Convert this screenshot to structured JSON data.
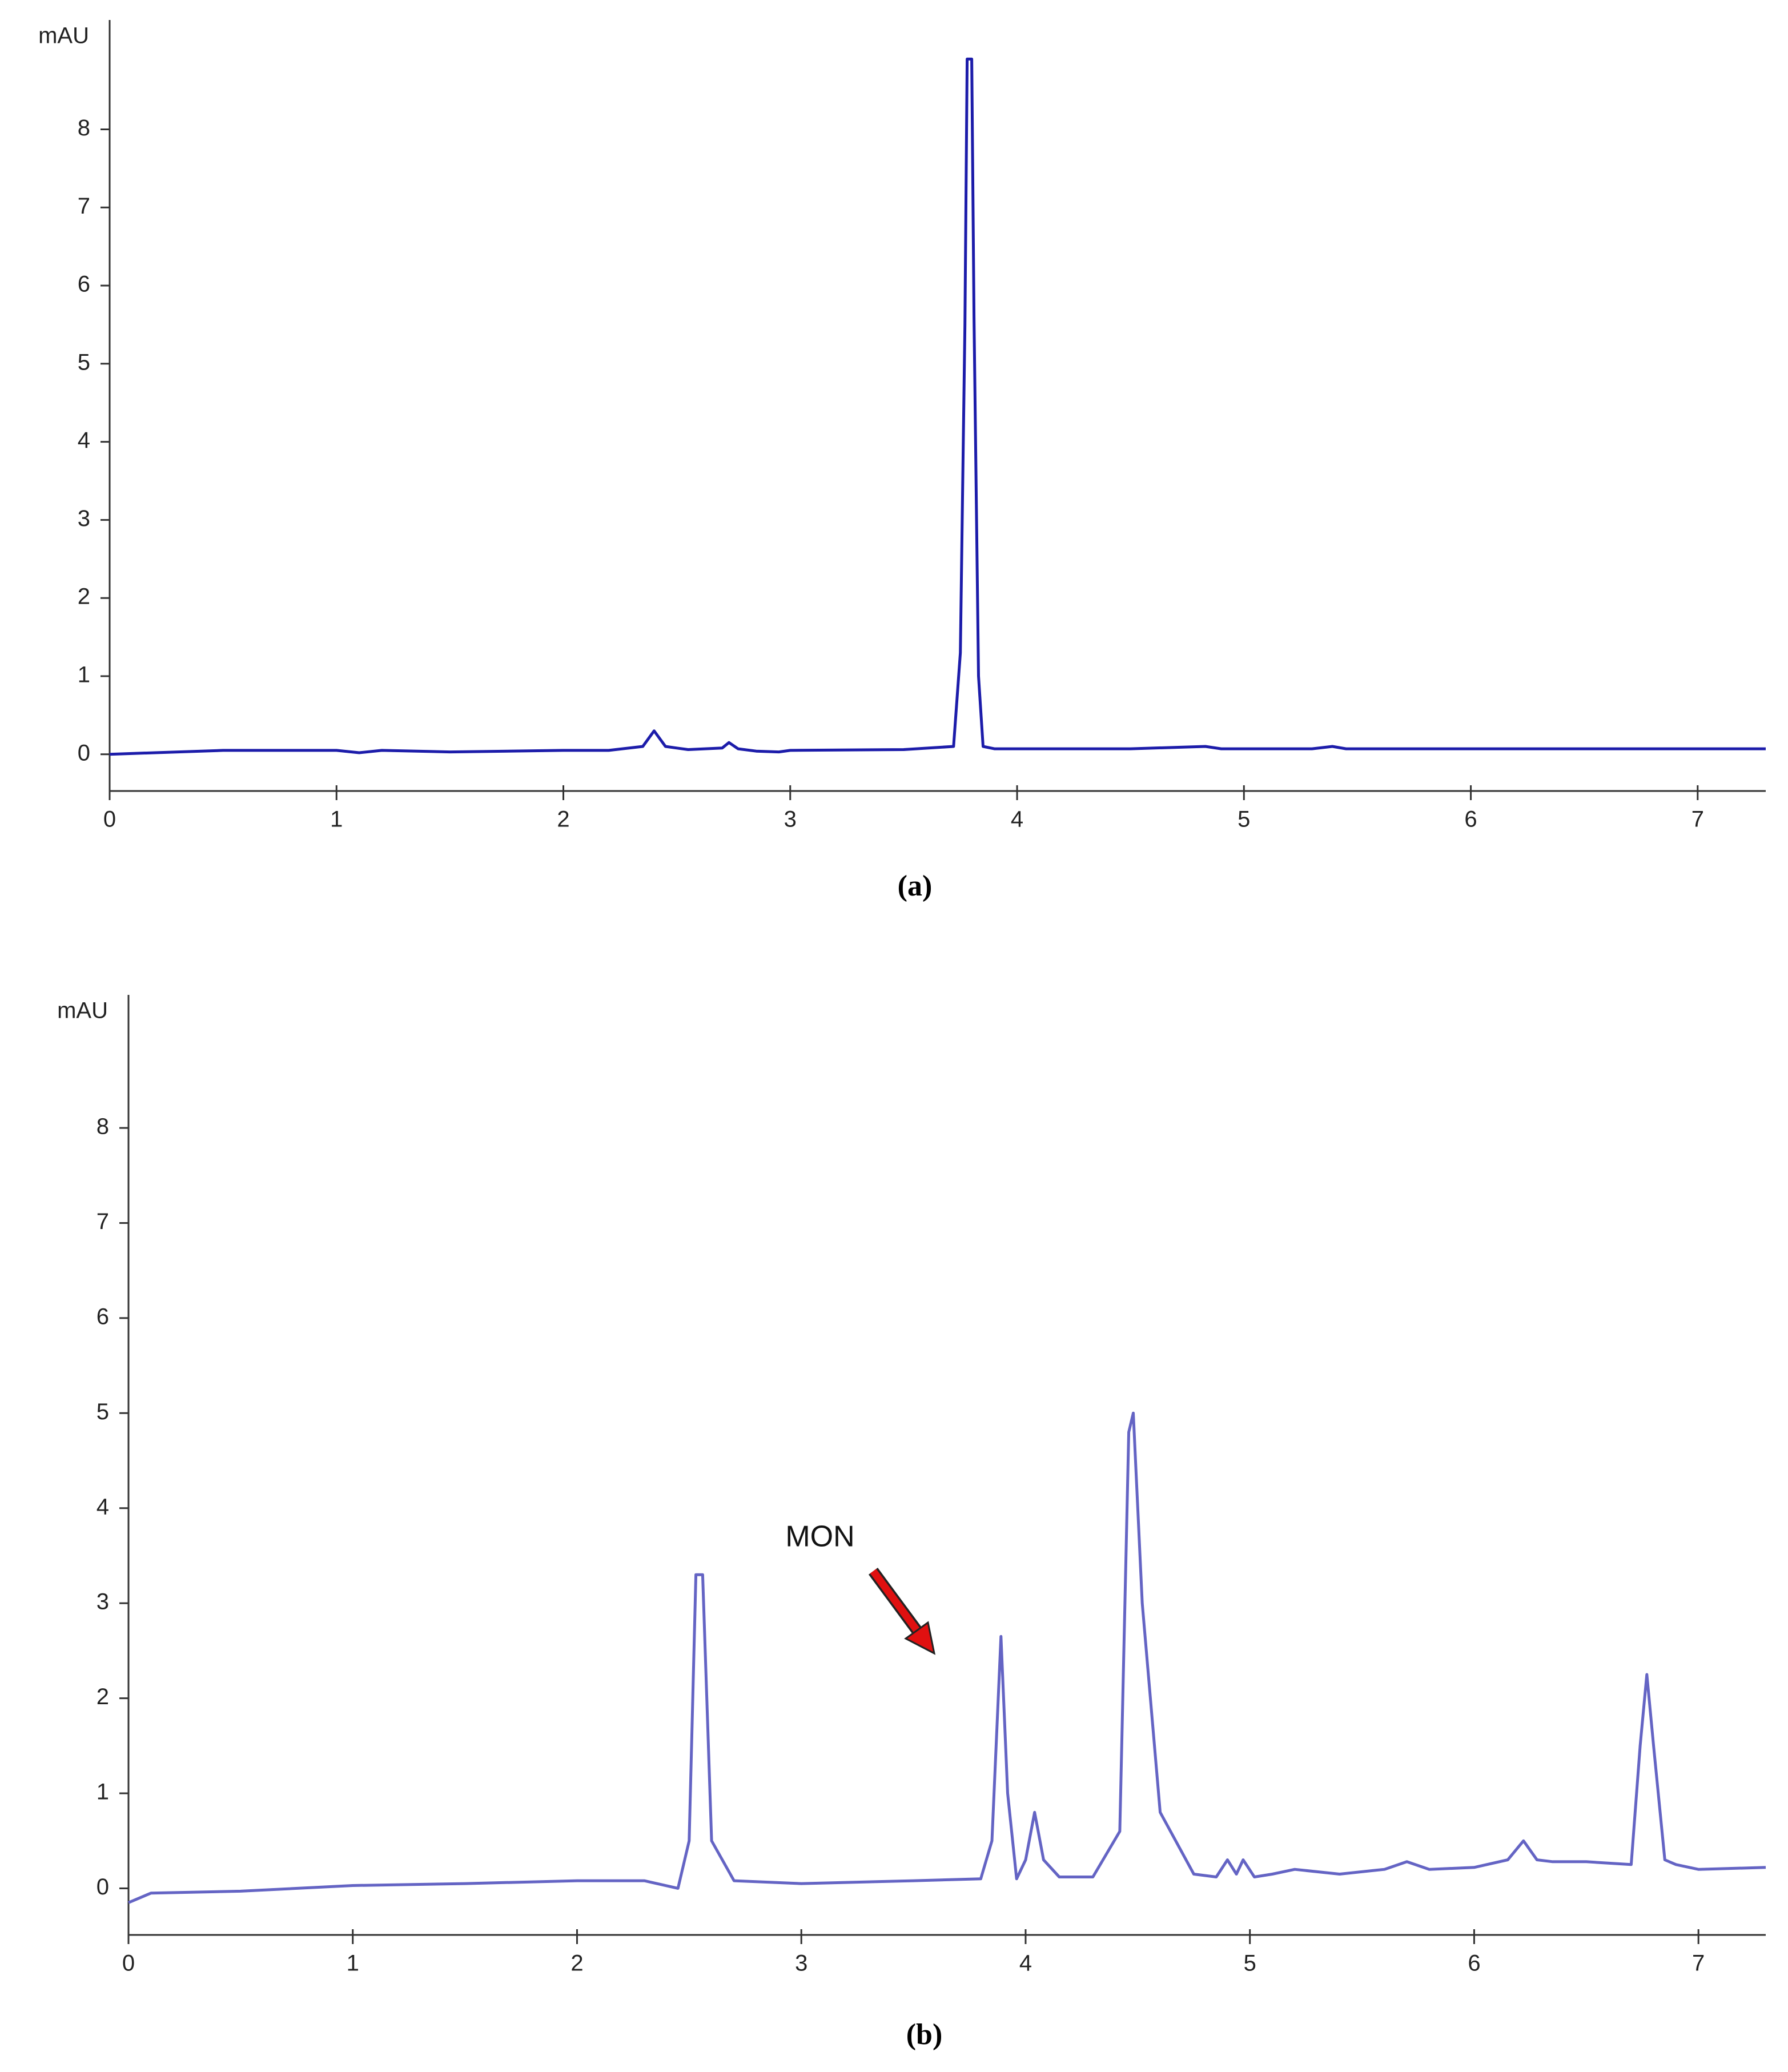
{
  "chart_data": [
    {
      "type": "line",
      "y_label": "mAU",
      "caption": "(a)",
      "color": "#1c1caa",
      "x": [
        0,
        0.2,
        0.5,
        1.0,
        1.1,
        1.2,
        1.5,
        2.0,
        2.2,
        2.35,
        2.4,
        2.45,
        2.5,
        2.55,
        2.7,
        2.73,
        2.77,
        2.85,
        2.95,
        3.0,
        3.5,
        3.72,
        3.75,
        3.77,
        3.78,
        3.8,
        3.81,
        3.83,
        3.85,
        3.9,
        4.5,
        4.83,
        4.9,
        5.3,
        5.39,
        5.45,
        6,
        7,
        7.3
      ],
      "values": [
        0,
        0.02,
        0.05,
        0.05,
        0.02,
        0.05,
        0.03,
        0.05,
        0.05,
        0.1,
        0.3,
        0.1,
        0.08,
        0.06,
        0.08,
        0.15,
        0.07,
        0.04,
        0.03,
        0.05,
        0.06,
        0.1,
        1.3,
        5.5,
        8.9,
        8.9,
        5.6,
        1.0,
        0.1,
        0.07,
        0.07,
        0.1,
        0.07,
        0.07,
        0.1,
        0.07,
        0.07,
        0.07,
        0.07
      ],
      "xlim": [
        0,
        7.3
      ],
      "ylim": [
        -0.47,
        9.4
      ],
      "xticks": [
        0,
        1,
        2,
        3,
        4,
        5,
        6,
        7
      ],
      "yticks": [
        0,
        1,
        2,
        3,
        4,
        5,
        6,
        7,
        8
      ]
    },
    {
      "type": "line",
      "y_label": "mAU",
      "caption": "(b)",
      "color": "#6464c4",
      "annotation": "MON",
      "x": [
        0,
        0.1,
        0.5,
        1.0,
        1.5,
        2.0,
        2.3,
        2.45,
        2.5,
        2.53,
        2.56,
        2.6,
        2.7,
        3.0,
        3.5,
        3.8,
        3.85,
        3.89,
        3.92,
        3.96,
        4.0,
        4.04,
        4.08,
        4.15,
        4.3,
        4.42,
        4.46,
        4.48,
        4.52,
        4.6,
        4.75,
        4.85,
        4.9,
        4.94,
        4.97,
        5.02,
        5.1,
        5.2,
        5.4,
        5.6,
        5.7,
        5.8,
        6.0,
        6.15,
        6.22,
        6.28,
        6.35,
        6.5,
        6.7,
        6.74,
        6.77,
        6.8,
        6.85,
        6.9,
        7.0,
        7.3
      ],
      "values": [
        -0.15,
        -0.05,
        -0.03,
        0.03,
        0.05,
        0.08,
        0.08,
        0.0,
        0.5,
        3.3,
        3.3,
        0.5,
        0.08,
        0.05,
        0.08,
        0.1,
        0.5,
        2.65,
        1.0,
        0.1,
        0.3,
        0.8,
        0.3,
        0.12,
        0.12,
        0.6,
        4.8,
        5.0,
        3.0,
        0.8,
        0.15,
        0.12,
        0.3,
        0.15,
        0.3,
        0.12,
        0.15,
        0.2,
        0.15,
        0.2,
        0.28,
        0.2,
        0.22,
        0.3,
        0.5,
        0.3,
        0.28,
        0.28,
        0.25,
        1.5,
        2.25,
        1.5,
        0.3,
        0.25,
        0.2,
        0.22
      ],
      "xlim": [
        0,
        7.3
      ],
      "ylim": [
        -0.49,
        9.4
      ],
      "xticks": [
        0,
        1,
        2,
        3,
        4,
        5,
        6,
        7
      ],
      "yticks": [
        0,
        1,
        2,
        3,
        4,
        5,
        6,
        7,
        8
      ]
    }
  ]
}
